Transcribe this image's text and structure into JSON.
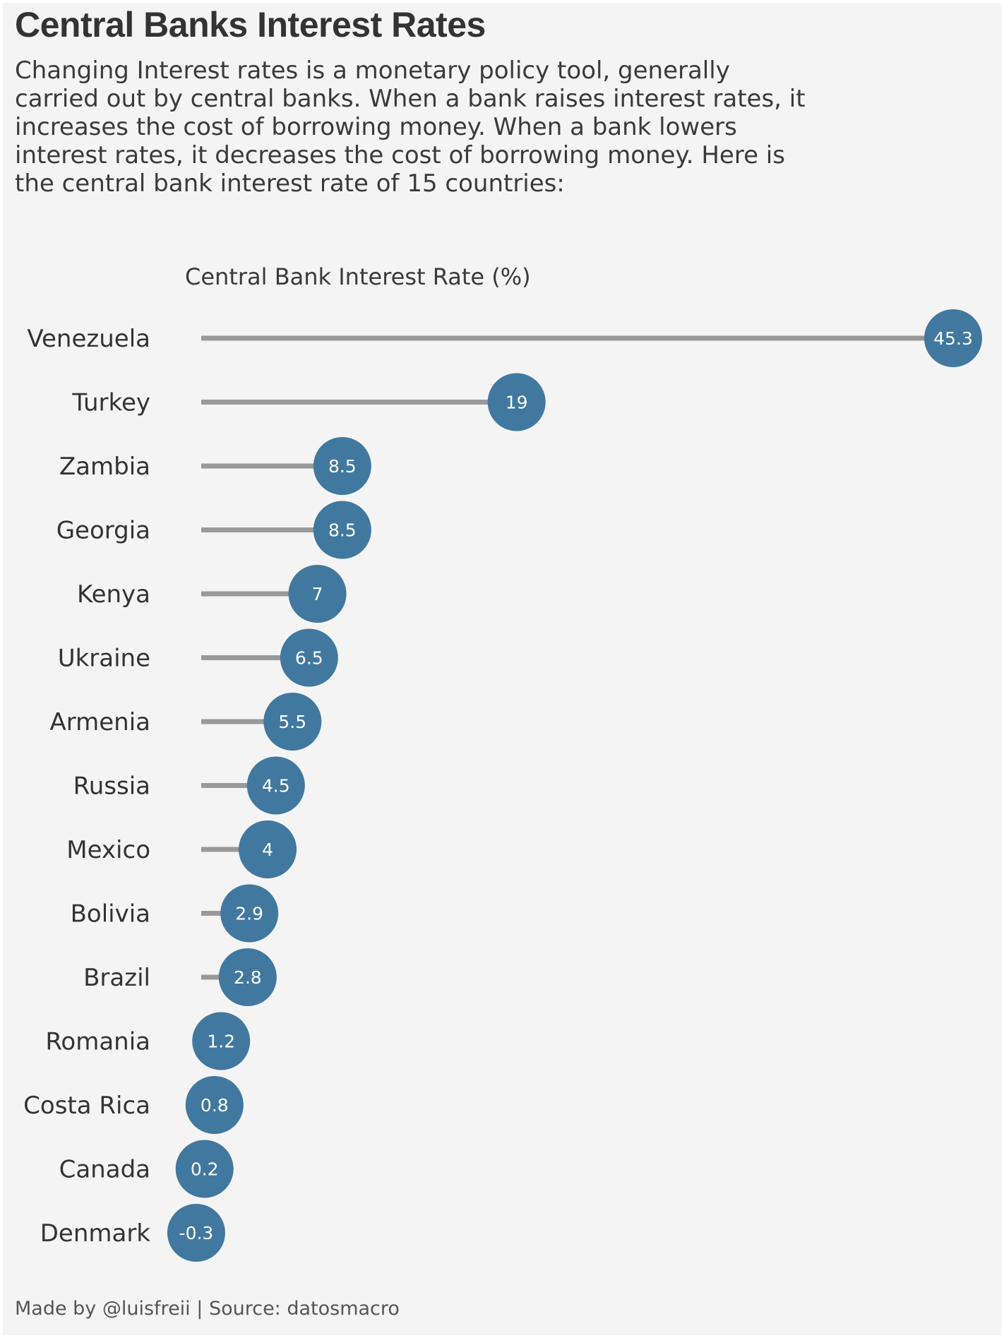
{
  "title": "Central Banks Interest Rates",
  "subtitle": "Changing Interest rates is a monetary policy tool, generally carried out by central banks. When a bank raises interest rates, it increases the cost of borrowing money. When a bank lowers interest rates, it decreases the cost of borrowing money. Here is the central bank interest rate of 15 countries:",
  "caption": "Made by @luisfreii | Source: datosmacro",
  "colors": {
    "background": "#f4f4f4",
    "dot": "#41789f",
    "stem": "#999999",
    "label": "#333333",
    "value_text": "#ffffff"
  },
  "chart_data": {
    "type": "lollipop",
    "orientation": "horizontal",
    "xlabel": "Central Bank Interest Rate (%)",
    "categories": [
      "Venezuela",
      "Turkey",
      "Zambia",
      "Georgia",
      "Kenya",
      "Ukraine",
      "Armenia",
      "Russia",
      "Mexico",
      "Bolivia",
      "Brazil",
      "Romania",
      "Costa Rica",
      "Canada",
      "Denmark"
    ],
    "values": [
      45.3,
      19,
      8.5,
      8.5,
      7,
      6.5,
      5.5,
      4.5,
      4,
      2.9,
      2.8,
      1.2,
      0.8,
      0.2,
      -0.3
    ],
    "value_labels": [
      "45.3",
      "19",
      "8.5",
      "8.5",
      "7",
      "6.5",
      "5.5",
      "4.5",
      "4",
      "2.9",
      "2.8",
      "1.2",
      "0.8",
      "0.2",
      "-0.3"
    ],
    "baseline": 0,
    "xlim": [
      -0.3,
      45.3
    ],
    "grid": false,
    "legend": "none"
  }
}
